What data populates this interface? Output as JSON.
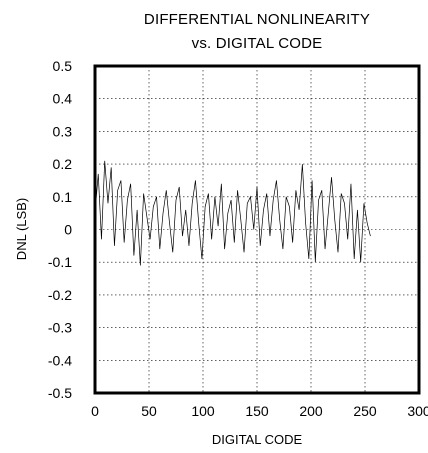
{
  "chart_data": {
    "type": "line",
    "title": "DIFFERENTIAL NONLINEARITY",
    "subtitle": "vs. DIGITAL CODE",
    "xlabel": "DIGITAL CODE",
    "ylabel": "DNL (LSB)",
    "xlim": [
      0,
      300
    ],
    "ylim": [
      -0.5,
      0.5
    ],
    "xticks": [
      "0",
      "50",
      "100",
      "150",
      "200",
      "250",
      "300"
    ],
    "yticks": [
      "0.5",
      "0.4",
      "0.3",
      "0.2",
      "0.1",
      "0",
      "-0.1",
      "-0.2",
      "-0.3",
      "-0.4",
      "-0.5"
    ],
    "grid": true,
    "legend": "none",
    "series": [
      {
        "x": [
          0,
          3,
          6,
          9,
          12,
          15,
          18,
          21,
          24,
          27,
          30,
          33,
          36,
          39,
          42,
          45,
          48,
          51,
          54,
          57,
          60,
          63,
          66,
          69,
          72,
          75,
          78,
          81,
          84,
          87,
          90,
          93,
          96,
          99,
          102,
          105,
          108,
          111,
          114,
          117,
          120,
          123,
          126,
          129,
          132,
          135,
          138,
          141,
          144,
          147,
          150,
          153,
          156,
          159,
          162,
          165,
          168,
          171,
          174,
          177,
          180,
          183,
          186,
          189,
          192,
          195,
          198,
          201,
          204,
          207,
          210,
          213,
          216,
          219,
          222,
          225,
          228,
          231,
          234,
          237,
          240,
          243,
          246,
          249,
          252,
          255
        ],
        "y": [
          0.05,
          0.17,
          -0.03,
          0.21,
          0.08,
          0.19,
          -0.05,
          0.12,
          0.15,
          -0.04,
          0.09,
          0.14,
          -0.08,
          0.06,
          -0.11,
          0.11,
          0.04,
          -0.03,
          0.07,
          0.1,
          -0.06,
          0.05,
          0.12,
          0.02,
          -0.07,
          0.09,
          0.13,
          -0.02,
          0.06,
          -0.05,
          0.08,
          0.15,
          0.02,
          -0.09,
          0.07,
          0.11,
          -0.03,
          0.1,
          0.01,
          0.14,
          -0.06,
          0.05,
          0.09,
          -0.04,
          0.12,
          0.03,
          -0.07,
          0.08,
          0.1,
          0.0,
          0.13,
          -0.05,
          0.06,
          0.11,
          -0.02,
          0.09,
          0.15,
          0.03,
          -0.06,
          0.1,
          0.07,
          -0.04,
          0.12,
          0.06,
          0.2,
          0.02,
          -0.09,
          0.15,
          -0.1,
          0.09,
          0.12,
          -0.06,
          0.05,
          0.16,
          0.03,
          -0.07,
          0.11,
          0.08,
          -0.03,
          0.14,
          -0.09,
          0.06,
          -0.1,
          0.08,
          0.02,
          -0.02
        ]
      }
    ]
  }
}
